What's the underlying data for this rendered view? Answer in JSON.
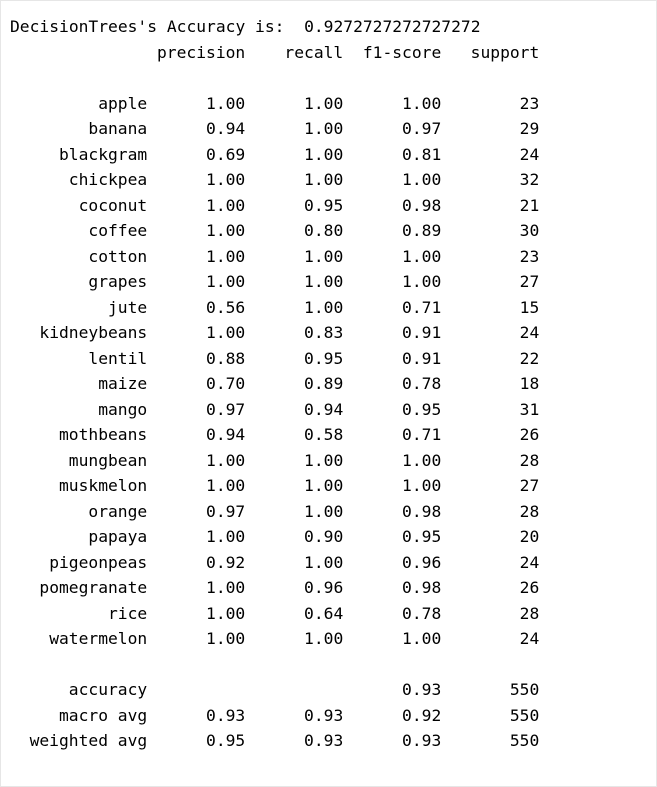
{
  "header": {
    "title": "DecisionTrees's Accuracy is:  0.9272727272727272"
  },
  "columns": [
    "precision",
    "recall",
    "f1-score",
    "support"
  ],
  "rows": [
    {
      "label": "apple",
      "precision": "1.00",
      "recall": "1.00",
      "f1": "1.00",
      "support": "23"
    },
    {
      "label": "banana",
      "precision": "0.94",
      "recall": "1.00",
      "f1": "0.97",
      "support": "29"
    },
    {
      "label": "blackgram",
      "precision": "0.69",
      "recall": "1.00",
      "f1": "0.81",
      "support": "24"
    },
    {
      "label": "chickpea",
      "precision": "1.00",
      "recall": "1.00",
      "f1": "1.00",
      "support": "32"
    },
    {
      "label": "coconut",
      "precision": "1.00",
      "recall": "0.95",
      "f1": "0.98",
      "support": "21"
    },
    {
      "label": "coffee",
      "precision": "1.00",
      "recall": "0.80",
      "f1": "0.89",
      "support": "30"
    },
    {
      "label": "cotton",
      "precision": "1.00",
      "recall": "1.00",
      "f1": "1.00",
      "support": "23"
    },
    {
      "label": "grapes",
      "precision": "1.00",
      "recall": "1.00",
      "f1": "1.00",
      "support": "27"
    },
    {
      "label": "jute",
      "precision": "0.56",
      "recall": "1.00",
      "f1": "0.71",
      "support": "15"
    },
    {
      "label": "kidneybeans",
      "precision": "1.00",
      "recall": "0.83",
      "f1": "0.91",
      "support": "24"
    },
    {
      "label": "lentil",
      "precision": "0.88",
      "recall": "0.95",
      "f1": "0.91",
      "support": "22"
    },
    {
      "label": "maize",
      "precision": "0.70",
      "recall": "0.89",
      "f1": "0.78",
      "support": "18"
    },
    {
      "label": "mango",
      "precision": "0.97",
      "recall": "0.94",
      "f1": "0.95",
      "support": "31"
    },
    {
      "label": "mothbeans",
      "precision": "0.94",
      "recall": "0.58",
      "f1": "0.71",
      "support": "26"
    },
    {
      "label": "mungbean",
      "precision": "1.00",
      "recall": "1.00",
      "f1": "1.00",
      "support": "28"
    },
    {
      "label": "muskmelon",
      "precision": "1.00",
      "recall": "1.00",
      "f1": "1.00",
      "support": "27"
    },
    {
      "label": "orange",
      "precision": "0.97",
      "recall": "1.00",
      "f1": "0.98",
      "support": "28"
    },
    {
      "label": "papaya",
      "precision": "1.00",
      "recall": "0.90",
      "f1": "0.95",
      "support": "20"
    },
    {
      "label": "pigeonpeas",
      "precision": "0.92",
      "recall": "1.00",
      "f1": "0.96",
      "support": "24"
    },
    {
      "label": "pomegranate",
      "precision": "1.00",
      "recall": "0.96",
      "f1": "0.98",
      "support": "26"
    },
    {
      "label": "rice",
      "precision": "1.00",
      "recall": "0.64",
      "f1": "0.78",
      "support": "28"
    },
    {
      "label": "watermelon",
      "precision": "1.00",
      "recall": "1.00",
      "f1": "1.00",
      "support": "24"
    }
  ],
  "summary": [
    {
      "label": "accuracy",
      "precision": "",
      "recall": "",
      "f1": "0.93",
      "support": "550"
    },
    {
      "label": "macro avg",
      "precision": "0.93",
      "recall": "0.93",
      "f1": "0.92",
      "support": "550"
    },
    {
      "label": "weighted avg",
      "precision": "0.95",
      "recall": "0.93",
      "f1": "0.93",
      "support": "550"
    }
  ]
}
